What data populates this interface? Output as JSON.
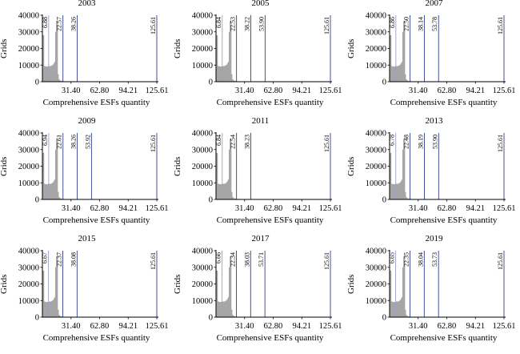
{
  "common": {
    "xlabel": "Comprehensive ESFs quantity",
    "ylabel": "Grids",
    "xticks": [
      "31.40",
      "62.80",
      "94.21",
      "125.61"
    ],
    "xtick_values": [
      31.4,
      62.8,
      94.21,
      125.61
    ],
    "yticks": [
      0,
      10000,
      20000,
      30000,
      40000
    ],
    "xlim": [
      0,
      125.61
    ],
    "ylim": [
      0,
      40000
    ],
    "bar_color": "#a6a6a6",
    "line_color": "#2f3d8f"
  },
  "chart_data": [
    {
      "type": "bar",
      "title": "2003",
      "bins_x": [
        1,
        2,
        3,
        4,
        5,
        6,
        7,
        8,
        9,
        10,
        11,
        12,
        13,
        14,
        15,
        16,
        17,
        18,
        19,
        20,
        21,
        22,
        23,
        24,
        25,
        26,
        27,
        28,
        29,
        30
      ],
      "bins_y": [
        28000,
        9500,
        9000,
        9200,
        9100,
        9000,
        9300,
        9400,
        9200,
        9500,
        9800,
        10200,
        11000,
        12000,
        30000,
        36500,
        4500,
        1500,
        800,
        600,
        400,
        300,
        300,
        200,
        200,
        150,
        150,
        100,
        100,
        100
      ],
      "thresholds": [
        "6.88",
        "22.57",
        "38.26",
        "125.61"
      ]
    },
    {
      "type": "bar",
      "title": "2005",
      "bins_x": [
        1,
        2,
        3,
        4,
        5,
        6,
        7,
        8,
        9,
        10,
        11,
        12,
        13,
        14,
        15,
        16,
        17,
        18,
        19,
        20,
        21,
        22,
        23,
        24,
        25,
        26,
        27,
        28,
        29,
        30
      ],
      "bins_y": [
        28000,
        9500,
        9000,
        9200,
        9100,
        9000,
        9300,
        9400,
        9200,
        9500,
        9800,
        10200,
        11000,
        12000,
        30000,
        36500,
        4500,
        1500,
        800,
        600,
        400,
        300,
        300,
        200,
        200,
        150,
        150,
        100,
        100,
        100
      ],
      "thresholds": [
        "6.84",
        "22.53",
        "38.22",
        "53.90",
        "125.61"
      ]
    },
    {
      "type": "bar",
      "title": "2007",
      "bins_x": [
        1,
        2,
        3,
        4,
        5,
        6,
        7,
        8,
        9,
        10,
        11,
        12,
        13,
        14,
        15,
        16,
        17,
        18,
        19,
        20,
        21,
        22,
        23,
        24,
        25,
        26,
        27,
        28,
        29,
        30
      ],
      "bins_y": [
        28000,
        9500,
        9000,
        9200,
        9100,
        9000,
        9300,
        9400,
        9200,
        9500,
        9800,
        10200,
        11000,
        12000,
        30000,
        36500,
        4500,
        1500,
        800,
        600,
        400,
        300,
        300,
        200,
        200,
        150,
        150,
        100,
        100,
        100
      ],
      "thresholds": [
        "6.86",
        "22.50",
        "38.14",
        "53.78",
        "125.61"
      ]
    },
    {
      "type": "bar",
      "title": "2009",
      "bins_x": [
        1,
        2,
        3,
        4,
        5,
        6,
        7,
        8,
        9,
        10,
        11,
        12,
        13,
        14,
        15,
        16,
        17,
        18,
        19,
        20,
        21,
        22,
        23,
        24,
        25,
        26,
        27,
        28,
        29,
        30
      ],
      "bins_y": [
        28000,
        9500,
        9000,
        9200,
        9100,
        9000,
        9300,
        9400,
        9200,
        9500,
        9800,
        10200,
        11000,
        12000,
        30000,
        36500,
        4500,
        1500,
        800,
        600,
        400,
        300,
        300,
        200,
        200,
        150,
        150,
        100,
        100,
        100
      ],
      "thresholds": [
        "6.94",
        "22.61",
        "38.26",
        "53.92",
        "125.61"
      ]
    },
    {
      "type": "bar",
      "title": "2011",
      "bins_x": [
        1,
        2,
        3,
        4,
        5,
        6,
        7,
        8,
        9,
        10,
        11,
        12,
        13,
        14,
        15,
        16,
        17,
        18,
        19,
        20,
        21,
        22,
        23,
        24,
        25,
        26,
        27,
        28,
        29,
        30
      ],
      "bins_y": [
        28000,
        9500,
        9000,
        9200,
        9100,
        9000,
        9300,
        9400,
        9200,
        9500,
        9800,
        10200,
        11000,
        12000,
        30000,
        36500,
        4500,
        1500,
        800,
        600,
        400,
        300,
        300,
        200,
        200,
        150,
        150,
        100,
        100,
        100
      ],
      "thresholds": [
        "6.84",
        "22.54",
        "38.23",
        "125.61"
      ]
    },
    {
      "type": "bar",
      "title": "2013",
      "bins_x": [
        1,
        2,
        3,
        4,
        5,
        6,
        7,
        8,
        9,
        10,
        11,
        12,
        13,
        14,
        15,
        16,
        17,
        18,
        19,
        20,
        21,
        22,
        23,
        24,
        25,
        26,
        27,
        28,
        29,
        30
      ],
      "bins_y": [
        28000,
        9500,
        9000,
        9200,
        9100,
        9000,
        9300,
        9400,
        9200,
        9500,
        9800,
        10200,
        11000,
        12000,
        30000,
        36500,
        4500,
        1500,
        800,
        600,
        400,
        300,
        300,
        200,
        200,
        150,
        150,
        100,
        100,
        100
      ],
      "thresholds": [
        "6.78",
        "22.48",
        "38.19",
        "53.90",
        "125.61"
      ]
    },
    {
      "type": "bar",
      "title": "2015",
      "bins_x": [
        1,
        2,
        3,
        4,
        5,
        6,
        7,
        8,
        9,
        10,
        11,
        12,
        13,
        14,
        15,
        16,
        17,
        18,
        19,
        20,
        21,
        22,
        23,
        24,
        25,
        26,
        27,
        28,
        29,
        30
      ],
      "bins_y": [
        28000,
        9500,
        9000,
        9200,
        9100,
        9000,
        9300,
        9400,
        9200,
        9500,
        9800,
        10200,
        11000,
        12000,
        30000,
        36500,
        4500,
        1500,
        800,
        600,
        400,
        300,
        300,
        200,
        200,
        150,
        150,
        100,
        100,
        100
      ],
      "thresholds": [
        "6.67",
        "22.37",
        "38.08",
        "125.61"
      ]
    },
    {
      "type": "bar",
      "title": "2017",
      "bins_x": [
        1,
        2,
        3,
        4,
        5,
        6,
        7,
        8,
        9,
        10,
        11,
        12,
        13,
        14,
        15,
        16,
        17,
        18,
        19,
        20,
        21,
        22,
        23,
        24,
        25,
        26,
        27,
        28,
        29,
        30
      ],
      "bins_y": [
        28000,
        9500,
        9000,
        9200,
        9100,
        9000,
        9300,
        9400,
        9200,
        9500,
        9800,
        10200,
        11000,
        12000,
        30000,
        36500,
        4500,
        1500,
        800,
        600,
        400,
        300,
        300,
        200,
        200,
        150,
        150,
        100,
        100,
        100
      ],
      "thresholds": [
        "6.66",
        "22.34",
        "38.03",
        "53.71",
        "125.61"
      ]
    },
    {
      "type": "bar",
      "title": "2019",
      "bins_x": [
        1,
        2,
        3,
        4,
        5,
        6,
        7,
        8,
        9,
        10,
        11,
        12,
        13,
        14,
        15,
        16,
        17,
        18,
        19,
        20,
        21,
        22,
        23,
        24,
        25,
        26,
        27,
        28,
        29,
        30
      ],
      "bins_y": [
        28000,
        9500,
        9000,
        9200,
        9100,
        9000,
        9300,
        9400,
        9200,
        9500,
        9800,
        10200,
        11000,
        12000,
        30000,
        36500,
        4500,
        1500,
        800,
        600,
        400,
        300,
        300,
        200,
        200,
        150,
        150,
        100,
        100,
        100
      ],
      "thresholds": [
        "6.65",
        "22.35",
        "38.04",
        "53.73",
        "125.61"
      ]
    }
  ]
}
